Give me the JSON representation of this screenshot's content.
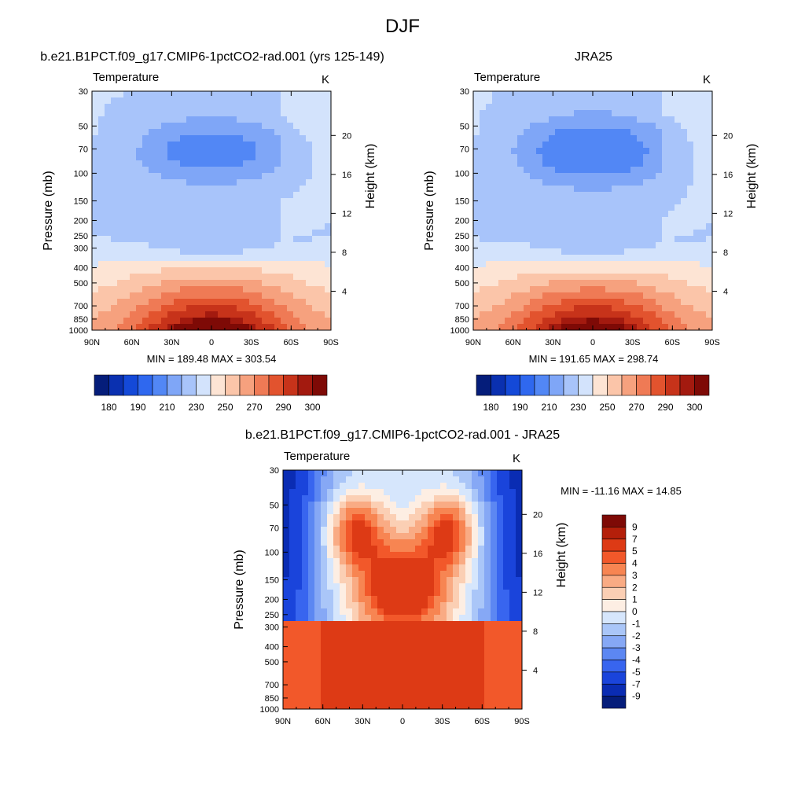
{
  "page_title": "DJF",
  "panels": [
    {
      "id": "model",
      "title": "b.e21.B1PCT.f09_g17.CMIP6-1pctCO2-rad.001 (yrs 125-149)",
      "variable": "Temperature",
      "units": "K",
      "stats": "MIN = 189.48  MAX = 303.54"
    },
    {
      "id": "obs",
      "title": "JRA25",
      "variable": "Temperature",
      "units": "K",
      "stats": "MIN = 191.65  MAX = 298.74"
    },
    {
      "id": "diff",
      "title": "b.e21.B1PCT.f09_g17.CMIP6-1pctCO2-rad.001 - JRA25",
      "variable": "Temperature",
      "units": "K",
      "stats": "MIN = -11.16  MAX =  14.85"
    }
  ],
  "chart_data": [
    {
      "type": "heatmap",
      "title": "b.e21.B1PCT.f09_g17.CMIP6-1pctCO2-rad.001 (yrs 125-149)",
      "variable": "Temperature",
      "units": "K",
      "xlabel": "",
      "ylabel": "Pressure (mb)",
      "y2label": "Height (km)",
      "x_ticks": [
        "90N",
        "60N",
        "30N",
        "0",
        "30S",
        "60S",
        "90S"
      ],
      "y_ticks": [
        30,
        50,
        70,
        100,
        150,
        200,
        250,
        300,
        400,
        500,
        700,
        850,
        1000
      ],
      "y2_ticks": [
        20,
        16,
        12,
        8,
        4
      ],
      "min": 189.48,
      "max": 303.54,
      "colorbar_labels": [
        "180",
        "190",
        "210",
        "230",
        "250",
        "270",
        "290",
        "300"
      ]
    },
    {
      "type": "heatmap",
      "title": "JRA25",
      "variable": "Temperature",
      "units": "K",
      "xlabel": "",
      "ylabel": "Pressure (mb)",
      "y2label": "Height (km)",
      "x_ticks": [
        "90N",
        "60N",
        "30N",
        "0",
        "30S",
        "60S",
        "90S"
      ],
      "y_ticks": [
        30,
        50,
        70,
        100,
        150,
        200,
        250,
        300,
        400,
        500,
        700,
        850,
        1000
      ],
      "y2_ticks": [
        20,
        16,
        12,
        8,
        4
      ],
      "min": 191.65,
      "max": 298.74,
      "colorbar_labels": [
        "180",
        "190",
        "210",
        "230",
        "250",
        "270",
        "290",
        "300"
      ]
    },
    {
      "type": "heatmap",
      "title": "b.e21.B1PCT.f09_g17.CMIP6-1pctCO2-rad.001 - JRA25",
      "variable": "Temperature",
      "units": "K",
      "xlabel": "",
      "ylabel": "Pressure (mb)",
      "y2label": "Height (km)",
      "x_ticks": [
        "90N",
        "60N",
        "30N",
        "0",
        "30S",
        "60S",
        "90S"
      ],
      "y_ticks": [
        30,
        50,
        70,
        100,
        150,
        200,
        250,
        300,
        400,
        500,
        700,
        850,
        1000
      ],
      "y2_ticks": [
        20,
        16,
        12,
        8,
        4
      ],
      "min": -11.16,
      "max": 14.85,
      "colorbar_labels": [
        "9",
        "7",
        "5",
        "4",
        "3",
        "2",
        "1",
        "0",
        "-1",
        "-2",
        "-3",
        "-4",
        "-5",
        "-7",
        "-9"
      ]
    }
  ],
  "colors": {
    "abs_palette": [
      "#051d7a",
      "#0a30b0",
      "#1449d8",
      "#2f68ef",
      "#5287f5",
      "#7fa6f7",
      "#a8c4fa",
      "#d3e3fc",
      "#fde4d4",
      "#fbc5a9",
      "#f6a17e",
      "#ef7a55",
      "#e2532e",
      "#c7331a",
      "#a31a0f",
      "#7e0a06"
    ],
    "diff_palette": [
      "#7e0a06",
      "#b41f0a",
      "#dd3a15",
      "#f2582a",
      "#f78552",
      "#f9ab84",
      "#fbcfb4",
      "#fdeee3",
      "#d6e6fc",
      "#aac6f8",
      "#86a8f5",
      "#5c87f2",
      "#3865ef",
      "#1a44db",
      "#0a2cb3",
      "#051d7a"
    ]
  }
}
